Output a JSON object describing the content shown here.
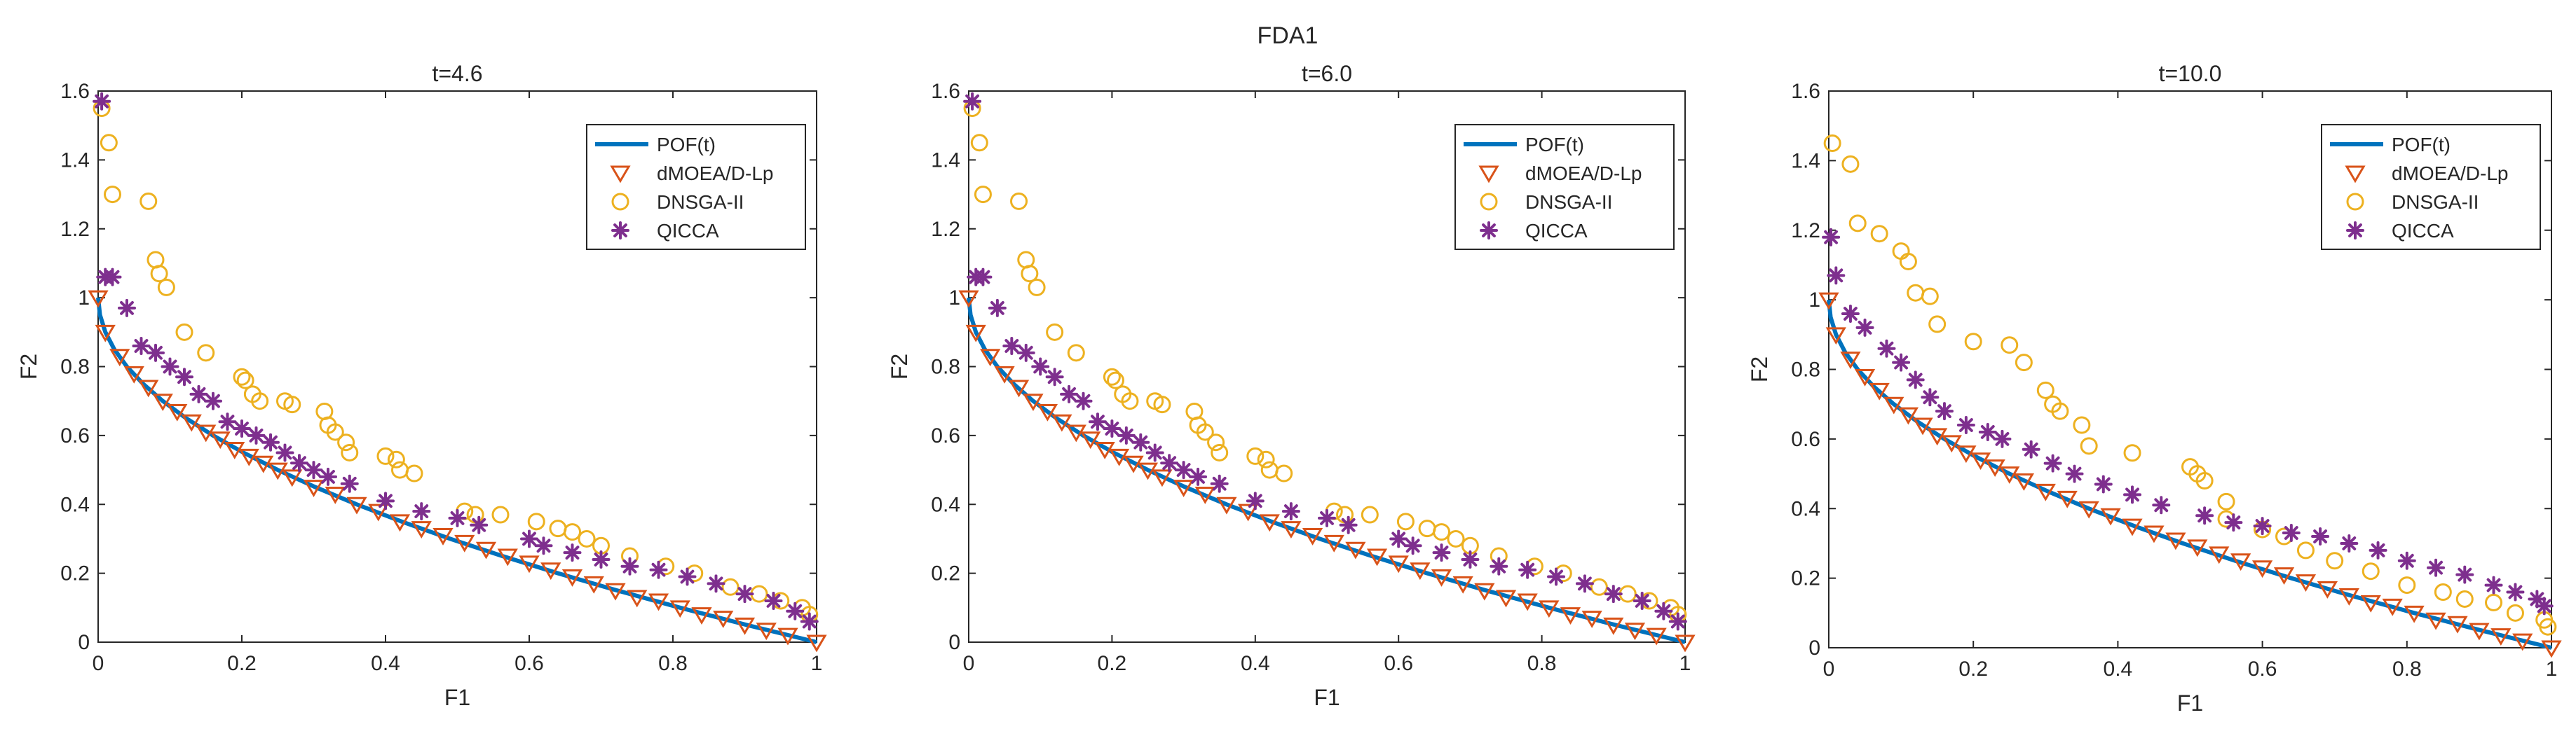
{
  "figure": {
    "title": "FDA1"
  },
  "legend": {
    "entries": [
      {
        "key": "pof",
        "label": "POF(t)",
        "color": "#0072BD",
        "marker": "line"
      },
      {
        "key": "dmoea",
        "label": "dMOEA/D-Lp",
        "color": "#D95319",
        "marker": "triangle-down"
      },
      {
        "key": "dnsga",
        "label": "DNSGA-II",
        "color": "#EDB120",
        "marker": "circle"
      },
      {
        "key": "qicca",
        "label": "QICCA",
        "color": "#7E2F8E",
        "marker": "asterisk"
      }
    ],
    "placement": "top-right"
  },
  "chart_data": [
    {
      "type": "scatter",
      "title": "t=4.6",
      "xlabel": "F1",
      "ylabel": "F2",
      "xlim": [
        0,
        1
      ],
      "ylim": [
        0,
        1.6
      ],
      "xticks": [
        "0",
        "0.2",
        "0.4",
        "0.6",
        "0.8",
        "1"
      ],
      "yticks": [
        "0",
        "0.2",
        "0.4",
        "0.6",
        "0.8",
        "1",
        "1.2",
        "1.4",
        "1.6"
      ],
      "series": [
        {
          "name": "POF(t)",
          "kind": "line",
          "x": [
            0,
            0.0025,
            0.01,
            0.0225,
            0.04,
            0.0625,
            0.09,
            0.1225,
            0.16,
            0.2025,
            0.25,
            0.3025,
            0.36,
            0.4225,
            0.49,
            0.5625,
            0.64,
            0.7225,
            0.81,
            0.9025,
            1
          ],
          "y": [
            1,
            0.95,
            0.9,
            0.85,
            0.8,
            0.75,
            0.7,
            0.65,
            0.6,
            0.55,
            0.5,
            0.45,
            0.4,
            0.35,
            0.3,
            0.25,
            0.2,
            0.15,
            0.1,
            0.05,
            0
          ]
        },
        {
          "name": "dMOEA/D-Lp",
          "kind": "triangle-down",
          "x": [
            0,
            0.01,
            0.03,
            0.05,
            0.07,
            0.09,
            0.11,
            0.13,
            0.15,
            0.17,
            0.19,
            0.21,
            0.23,
            0.25,
            0.27,
            0.3,
            0.33,
            0.36,
            0.39,
            0.42,
            0.45,
            0.48,
            0.51,
            0.54,
            0.57,
            0.6,
            0.63,
            0.66,
            0.69,
            0.72,
            0.75,
            0.78,
            0.81,
            0.84,
            0.87,
            0.9,
            0.93,
            0.96,
            1.0
          ],
          "y": [
            1.0,
            0.9,
            0.83,
            0.78,
            0.74,
            0.7,
            0.67,
            0.64,
            0.61,
            0.59,
            0.56,
            0.54,
            0.52,
            0.5,
            0.48,
            0.45,
            0.43,
            0.4,
            0.38,
            0.35,
            0.33,
            0.31,
            0.29,
            0.27,
            0.25,
            0.23,
            0.21,
            0.19,
            0.17,
            0.15,
            0.13,
            0.12,
            0.1,
            0.08,
            0.07,
            0.05,
            0.035,
            0.02,
            0.0
          ]
        },
        {
          "name": "DNSGA-II",
          "kind": "circle",
          "x": [
            0.005,
            0.015,
            0.02,
            0.07,
            0.08,
            0.085,
            0.095,
            0.12,
            0.15,
            0.2,
            0.205,
            0.215,
            0.225,
            0.26,
            0.27,
            0.315,
            0.32,
            0.33,
            0.345,
            0.35,
            0.4,
            0.415,
            0.42,
            0.44,
            0.51,
            0.525,
            0.56,
            0.61,
            0.64,
            0.66,
            0.68,
            0.7,
            0.74,
            0.79,
            0.83,
            0.88,
            0.92,
            0.95,
            0.98,
            0.99
          ],
          "y": [
            1.55,
            1.45,
            1.3,
            1.28,
            1.11,
            1.07,
            1.03,
            0.9,
            0.84,
            0.77,
            0.76,
            0.72,
            0.7,
            0.7,
            0.69,
            0.67,
            0.63,
            0.61,
            0.58,
            0.55,
            0.54,
            0.53,
            0.5,
            0.49,
            0.38,
            0.37,
            0.37,
            0.35,
            0.33,
            0.32,
            0.3,
            0.28,
            0.25,
            0.22,
            0.2,
            0.16,
            0.14,
            0.12,
            0.1,
            0.08
          ]
        },
        {
          "name": "QICCA",
          "kind": "asterisk",
          "x": [
            0.005,
            0.01,
            0.02,
            0.04,
            0.06,
            0.08,
            0.1,
            0.12,
            0.14,
            0.16,
            0.18,
            0.2,
            0.22,
            0.24,
            0.26,
            0.28,
            0.3,
            0.32,
            0.35,
            0.4,
            0.45,
            0.5,
            0.53,
            0.6,
            0.62,
            0.66,
            0.7,
            0.74,
            0.78,
            0.82,
            0.86,
            0.9,
            0.94,
            0.97,
            0.99
          ],
          "y": [
            1.57,
            1.06,
            1.06,
            0.97,
            0.86,
            0.84,
            0.8,
            0.77,
            0.72,
            0.7,
            0.64,
            0.62,
            0.6,
            0.58,
            0.55,
            0.52,
            0.5,
            0.48,
            0.46,
            0.41,
            0.38,
            0.36,
            0.34,
            0.3,
            0.28,
            0.26,
            0.24,
            0.22,
            0.21,
            0.19,
            0.17,
            0.14,
            0.12,
            0.09,
            0.06
          ]
        }
      ]
    },
    {
      "type": "scatter",
      "title": "t=6.0",
      "xlabel": "F1",
      "ylabel": "F2",
      "xlim": [
        0,
        1
      ],
      "ylim": [
        0,
        1.6
      ],
      "xticks": [
        "0",
        "0.2",
        "0.4",
        "0.6",
        "0.8",
        "1"
      ],
      "yticks": [
        "0",
        "0.2",
        "0.4",
        "0.6",
        "0.8",
        "1",
        "1.2",
        "1.4",
        "1.6"
      ],
      "series": [
        {
          "name": "POF(t)",
          "kind": "line",
          "x": [
            0,
            0.0025,
            0.01,
            0.0225,
            0.04,
            0.0625,
            0.09,
            0.1225,
            0.16,
            0.2025,
            0.25,
            0.3025,
            0.36,
            0.4225,
            0.49,
            0.5625,
            0.64,
            0.7225,
            0.81,
            0.9025,
            1
          ],
          "y": [
            1,
            0.95,
            0.9,
            0.85,
            0.8,
            0.75,
            0.7,
            0.65,
            0.6,
            0.55,
            0.5,
            0.45,
            0.4,
            0.35,
            0.3,
            0.25,
            0.2,
            0.15,
            0.1,
            0.05,
            0
          ]
        },
        {
          "name": "dMOEA/D-Lp",
          "kind": "triangle-down",
          "x": [
            0,
            0.01,
            0.03,
            0.05,
            0.07,
            0.09,
            0.11,
            0.13,
            0.15,
            0.17,
            0.19,
            0.21,
            0.23,
            0.25,
            0.27,
            0.3,
            0.33,
            0.36,
            0.39,
            0.42,
            0.45,
            0.48,
            0.51,
            0.54,
            0.57,
            0.6,
            0.63,
            0.66,
            0.69,
            0.72,
            0.75,
            0.78,
            0.81,
            0.84,
            0.87,
            0.9,
            0.93,
            0.96,
            1.0
          ],
          "y": [
            1.0,
            0.9,
            0.83,
            0.78,
            0.74,
            0.7,
            0.67,
            0.64,
            0.61,
            0.59,
            0.56,
            0.54,
            0.52,
            0.5,
            0.48,
            0.45,
            0.43,
            0.4,
            0.38,
            0.35,
            0.33,
            0.31,
            0.29,
            0.27,
            0.25,
            0.23,
            0.21,
            0.19,
            0.17,
            0.15,
            0.13,
            0.12,
            0.1,
            0.08,
            0.07,
            0.05,
            0.035,
            0.02,
            0.0
          ]
        },
        {
          "name": "DNSGA-II",
          "kind": "circle",
          "x": [
            0.005,
            0.015,
            0.02,
            0.07,
            0.08,
            0.085,
            0.095,
            0.12,
            0.15,
            0.2,
            0.205,
            0.215,
            0.225,
            0.26,
            0.27,
            0.315,
            0.32,
            0.33,
            0.345,
            0.35,
            0.4,
            0.415,
            0.42,
            0.44,
            0.51,
            0.525,
            0.56,
            0.61,
            0.64,
            0.66,
            0.68,
            0.7,
            0.74,
            0.79,
            0.83,
            0.88,
            0.92,
            0.95,
            0.98,
            0.99
          ],
          "y": [
            1.55,
            1.45,
            1.3,
            1.28,
            1.11,
            1.07,
            1.03,
            0.9,
            0.84,
            0.77,
            0.76,
            0.72,
            0.7,
            0.7,
            0.69,
            0.67,
            0.63,
            0.61,
            0.58,
            0.55,
            0.54,
            0.53,
            0.5,
            0.49,
            0.38,
            0.37,
            0.37,
            0.35,
            0.33,
            0.32,
            0.3,
            0.28,
            0.25,
            0.22,
            0.2,
            0.16,
            0.14,
            0.12,
            0.1,
            0.08
          ]
        },
        {
          "name": "QICCA",
          "kind": "asterisk",
          "x": [
            0.005,
            0.01,
            0.02,
            0.04,
            0.06,
            0.08,
            0.1,
            0.12,
            0.14,
            0.16,
            0.18,
            0.2,
            0.22,
            0.24,
            0.26,
            0.28,
            0.3,
            0.32,
            0.35,
            0.4,
            0.45,
            0.5,
            0.53,
            0.6,
            0.62,
            0.66,
            0.7,
            0.74,
            0.78,
            0.82,
            0.86,
            0.9,
            0.94,
            0.97,
            0.99
          ],
          "y": [
            1.57,
            1.06,
            1.06,
            0.97,
            0.86,
            0.84,
            0.8,
            0.77,
            0.72,
            0.7,
            0.64,
            0.62,
            0.6,
            0.58,
            0.55,
            0.52,
            0.5,
            0.48,
            0.46,
            0.41,
            0.38,
            0.36,
            0.34,
            0.3,
            0.28,
            0.26,
            0.24,
            0.22,
            0.21,
            0.19,
            0.17,
            0.14,
            0.12,
            0.09,
            0.06
          ]
        }
      ]
    },
    {
      "type": "scatter",
      "title": "t=10.0",
      "xlabel": "F1",
      "ylabel": "F2",
      "xlim": [
        0,
        1
      ],
      "ylim": [
        0,
        1.6
      ],
      "xticks": [
        "0",
        "0.2",
        "0.4",
        "0.6",
        "0.8",
        "1"
      ],
      "yticks": [
        "0",
        "0.2",
        "0.4",
        "0.6",
        "0.8",
        "1",
        "1.2",
        "1.4",
        "1.6"
      ],
      "series": [
        {
          "name": "POF(t)",
          "kind": "line",
          "x": [
            0,
            0.0025,
            0.01,
            0.0225,
            0.04,
            0.0625,
            0.09,
            0.1225,
            0.16,
            0.2025,
            0.25,
            0.3025,
            0.36,
            0.4225,
            0.49,
            0.5625,
            0.64,
            0.7225,
            0.81,
            0.9025,
            1
          ],
          "y": [
            1,
            0.95,
            0.9,
            0.85,
            0.8,
            0.75,
            0.7,
            0.65,
            0.6,
            0.55,
            0.5,
            0.45,
            0.4,
            0.35,
            0.3,
            0.25,
            0.2,
            0.15,
            0.1,
            0.05,
            0
          ]
        },
        {
          "name": "dMOEA/D-Lp",
          "kind": "triangle-down",
          "x": [
            0,
            0.01,
            0.03,
            0.05,
            0.07,
            0.09,
            0.11,
            0.13,
            0.15,
            0.17,
            0.19,
            0.21,
            0.23,
            0.25,
            0.27,
            0.3,
            0.33,
            0.36,
            0.39,
            0.42,
            0.45,
            0.48,
            0.51,
            0.54,
            0.57,
            0.6,
            0.63,
            0.66,
            0.69,
            0.72,
            0.75,
            0.78,
            0.81,
            0.84,
            0.87,
            0.9,
            0.93,
            0.96,
            1.0
          ],
          "y": [
            1.0,
            0.9,
            0.83,
            0.78,
            0.74,
            0.7,
            0.67,
            0.64,
            0.61,
            0.59,
            0.56,
            0.54,
            0.52,
            0.5,
            0.48,
            0.45,
            0.43,
            0.4,
            0.38,
            0.35,
            0.33,
            0.31,
            0.29,
            0.27,
            0.25,
            0.23,
            0.21,
            0.19,
            0.17,
            0.15,
            0.13,
            0.12,
            0.1,
            0.08,
            0.07,
            0.05,
            0.035,
            0.02,
            0.0
          ]
        },
        {
          "name": "DNSGA-II",
          "kind": "circle",
          "x": [
            0.005,
            0.03,
            0.04,
            0.07,
            0.1,
            0.11,
            0.12,
            0.14,
            0.15,
            0.2,
            0.25,
            0.27,
            0.3,
            0.31,
            0.32,
            0.35,
            0.36,
            0.42,
            0.5,
            0.51,
            0.52,
            0.55,
            0.55,
            0.6,
            0.63,
            0.66,
            0.7,
            0.75,
            0.8,
            0.85,
            0.88,
            0.92,
            0.95,
            0.99,
            0.995
          ],
          "y": [
            1.45,
            1.39,
            1.22,
            1.19,
            1.14,
            1.11,
            1.02,
            1.01,
            0.93,
            0.88,
            0.87,
            0.82,
            0.74,
            0.7,
            0.68,
            0.64,
            0.58,
            0.56,
            0.52,
            0.5,
            0.48,
            0.42,
            0.37,
            0.34,
            0.32,
            0.28,
            0.25,
            0.22,
            0.18,
            0.16,
            0.14,
            0.13,
            0.1,
            0.08,
            0.06
          ]
        },
        {
          "name": "QICCA",
          "kind": "asterisk",
          "x": [
            0.003,
            0.01,
            0.03,
            0.05,
            0.08,
            0.1,
            0.12,
            0.14,
            0.16,
            0.19,
            0.22,
            0.24,
            0.28,
            0.31,
            0.34,
            0.38,
            0.42,
            0.46,
            0.52,
            0.56,
            0.6,
            0.64,
            0.68,
            0.72,
            0.76,
            0.8,
            0.84,
            0.88,
            0.92,
            0.95,
            0.98,
            0.99
          ],
          "y": [
            1.18,
            1.07,
            0.96,
            0.92,
            0.86,
            0.82,
            0.77,
            0.72,
            0.68,
            0.64,
            0.62,
            0.6,
            0.57,
            0.53,
            0.5,
            0.47,
            0.44,
            0.41,
            0.38,
            0.36,
            0.35,
            0.33,
            0.32,
            0.3,
            0.28,
            0.25,
            0.23,
            0.21,
            0.18,
            0.16,
            0.14,
            0.12
          ]
        }
      ]
    }
  ]
}
